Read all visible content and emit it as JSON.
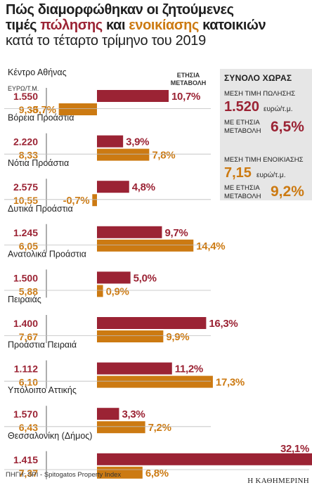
{
  "title": {
    "line1": "Πώς διαμορφώθηκαν οι ζητούμενες",
    "line2_pre": "τιμές ",
    "line2_sale": "πώλησης",
    "line2_mid": " και ",
    "line2_rent": "ενοικίασης",
    "line2_post": " κατοικιών",
    "line3": "κατά το τέταρτο τρίμηνο του 2019"
  },
  "column_labels": {
    "units": "ΕΥΡΩ/Τ.Μ.",
    "annual_line1": "ΕΤΗΣΙΑ",
    "annual_line2": "ΜΕΤΑΒΟΛΗ"
  },
  "colors": {
    "sale": "#9b2334",
    "rent": "#cc7a12",
    "panel": "#e6e6e6"
  },
  "chart_data": {
    "type": "bar",
    "orientation": "horizontal",
    "categories": [
      "Κέντρο Αθήνας",
      "Βόρεια Προάστια",
      "Νότια Προάστια",
      "Δυτικά Προάστια",
      "Ανατολικά Προάστια",
      "Πειραιάς",
      "Προάστια Πειραιά",
      "Υπόλοιπο Αττικής",
      "Θεσσαλονίκη (Δήμος)"
    ],
    "sale_price_eur_sqm": [
      "1.550",
      "2.220",
      "2.575",
      "1.245",
      "1.500",
      "1.400",
      "1.112",
      "1.570",
      "1.415"
    ],
    "rent_price_eur_sqm": [
      "9,38",
      "8,33",
      "10,55",
      "6,05",
      "5,88",
      "7,67",
      "6,10",
      "6,43",
      "7,37"
    ],
    "series": [
      {
        "name": "πώλησης",
        "values": [
          10.7,
          3.9,
          4.8,
          9.7,
          5.0,
          16.3,
          11.2,
          3.3,
          32.1
        ],
        "labels": [
          "10,7%",
          "3,9%",
          "4,8%",
          "9,7%",
          "5,0%",
          "16,3%",
          "11,2%",
          "3,3%",
          "32,1%"
        ]
      },
      {
        "name": "ενοικίασης",
        "values": [
          -5.7,
          7.8,
          -0.7,
          14.4,
          0.9,
          9.9,
          17.3,
          7.2,
          6.8
        ],
        "labels": [
          "-5,7%",
          "7,8%",
          "-0,7%",
          "14,4%",
          "0,9%",
          "9,9%",
          "17,3%",
          "7,2%",
          "6,8%"
        ]
      }
    ],
    "xlabel": "ΕΤΗΣΙΑ ΜΕΤΑΒΟΛΗ",
    "grid": false,
    "legend": "none"
  },
  "summary": {
    "heading": "ΣΥΝΟΛΟ ΧΩΡΑΣ",
    "sale_label": "ΜΕΣΗ ΤΙΜΗ ΠΩΛΗΣΗΣ",
    "sale_value": "1.520",
    "sale_unit": "ευρώ/τ.μ.",
    "sale_change_label_1": "ΜΕ ΕΤΗΣΙΑ",
    "sale_change_label_2": "ΜΕΤΑΒΟΛΗ",
    "sale_change": "6,5%",
    "rent_label": "ΜΕΣΗ ΤΙΜΗ ΕΝΟΙΚΙΑΣΗΣ",
    "rent_value": "7,15",
    "rent_unit": "ευρώ/τ.μ.",
    "rent_change_label_1": "ΜΕ ΕΤΗΣΙΑ",
    "rent_change_label_2": "ΜΕΤΑΒΟΛΗ",
    "rent_change": "9,2%"
  },
  "footer": {
    "source": "ΠΗΓΗ: SPI - Spitogatos Property Index",
    "publisher": "Η ΚΑΘΗΜΕΡΙΝΗ"
  }
}
